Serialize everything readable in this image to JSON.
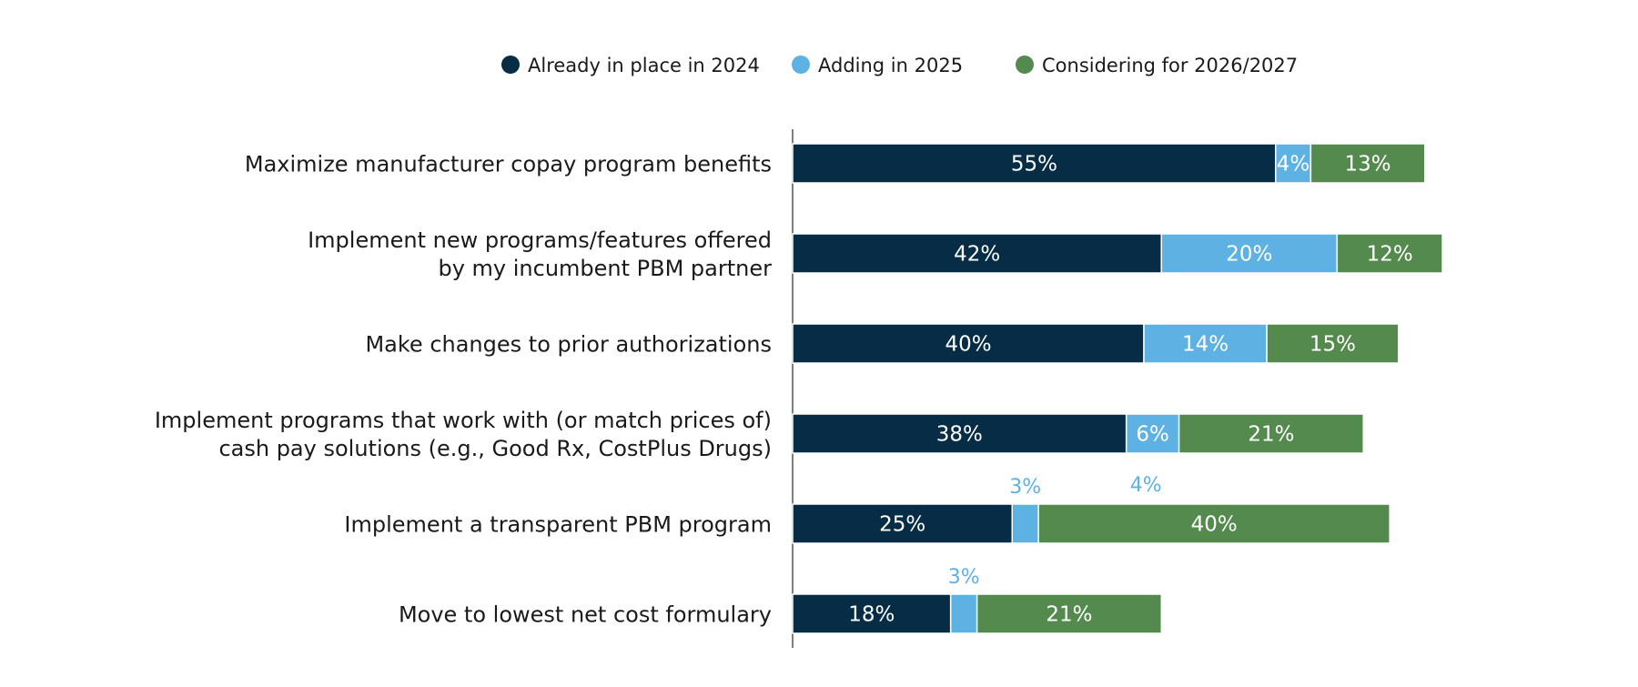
{
  "chart_data": {
    "type": "bar",
    "orientation": "horizontal",
    "stacked": true,
    "title": "",
    "xlabel": "",
    "ylabel": "",
    "xlim": [
      0,
      100
    ],
    "legend_position": "top-center",
    "grid": false,
    "categories": [
      [
        "Maximize manufacturer copay program benefits"
      ],
      [
        "Implement new programs/features offered",
        "by my incumbent PBM partner"
      ],
      [
        "Make changes to prior authorizations"
      ],
      [
        "Implement programs that work with (or match prices of)",
        "cash pay solutions (e.g., Good Rx, CostPlus Drugs)"
      ],
      [
        "Implement a transparent PBM program"
      ],
      [
        "Move to lowest net cost formulary"
      ]
    ],
    "series": [
      {
        "name": "Already in place in 2024",
        "color": "#062d45",
        "label_color": "#ffffff",
        "values": [
          55,
          42,
          40,
          38,
          25,
          18
        ]
      },
      {
        "name": "Adding in 2025",
        "color": "#5db2e3",
        "label_color": "#ffffff",
        "outside_label_color": "#5db2e3",
        "values": [
          4,
          20,
          14,
          6,
          3,
          3
        ]
      },
      {
        "name": "Considering for 2026/2027",
        "color": "#548a4d",
        "label_color": "#ffffff",
        "values": [
          13,
          12,
          15,
          21,
          40,
          21
        ]
      }
    ],
    "outside_labels": [
      {
        "text": "3%",
        "color": "#5db2e3",
        "row": 4,
        "anchor_series": 1
      },
      {
        "text": "4%",
        "color": "#5db2e3",
        "row": 4,
        "anchor_series": 2
      },
      {
        "text": "3%",
        "color": "#5db2e3",
        "row": 5,
        "anchor_series": 1
      }
    ]
  }
}
